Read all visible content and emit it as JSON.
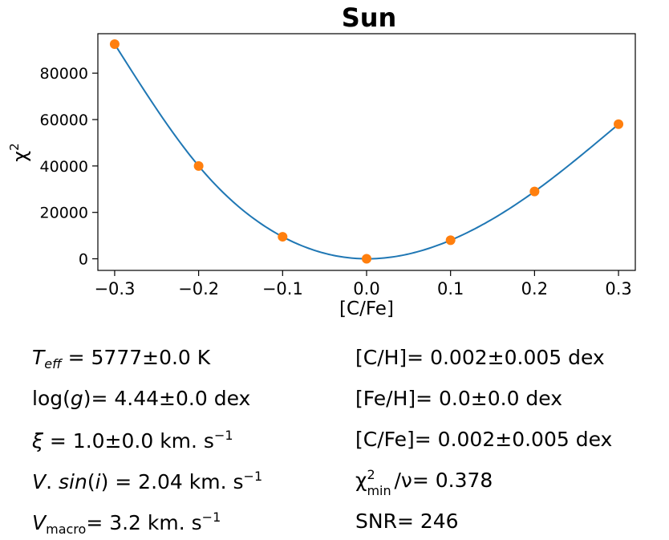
{
  "chart_data": {
    "type": "line",
    "title": "Sun",
    "xlabel": "[C/Fe]",
    "ylabel": "χ",
    "ylabel_sup": "2",
    "xlim": [
      -0.32,
      0.32
    ],
    "ylim": [
      -5000,
      97000
    ],
    "xticks": [
      -0.3,
      -0.2,
      -0.1,
      0.0,
      0.1,
      0.2,
      0.3
    ],
    "xtick_labels": [
      "−0.3",
      "−0.2",
      "−0.1",
      "0.0",
      "0.1",
      "0.2",
      "0.3"
    ],
    "yticks": [
      0,
      20000,
      40000,
      60000,
      80000
    ],
    "ytick_labels": [
      "0",
      "20000",
      "40000",
      "60000",
      "80000"
    ],
    "grid": false,
    "series": [
      {
        "kind": "fit-curve",
        "color": "#1f77b4",
        "x": [
          -0.3,
          -0.2,
          -0.1,
          0.0,
          0.1,
          0.2,
          0.3
        ],
        "y": [
          92500,
          40000,
          9500,
          0,
          8000,
          29000,
          58000
        ]
      },
      {
        "kind": "points",
        "color": "#ff7f0e",
        "x": [
          -0.3,
          -0.2,
          -0.1,
          0.0,
          0.1,
          0.2,
          0.3
        ],
        "y": [
          92500,
          40000,
          9500,
          0,
          8000,
          29000,
          58000
        ]
      }
    ]
  },
  "params": {
    "teff": {
      "sym": "T",
      "sub": "eff",
      "text": " = 5777±0.0 K"
    },
    "logg": {
      "pre": "log(",
      "sym": "g",
      "text": ")= 4.44±0.0 dex"
    },
    "xi": {
      "sym": "ξ",
      "text": " = 1.0±0.0 km. s",
      "sup": "−1"
    },
    "vsini": {
      "pre_sym": "V",
      "mid": ". ",
      "sym": "sin",
      "mid2": "(",
      "sym2": "i",
      "text": ") = 2.04 km. s",
      "sup": "−1"
    },
    "vmacro": {
      "sym": "V",
      "sub": "macro",
      "text": "= 3.2 km. s",
      "sup": "−1"
    },
    "ch": {
      "text": "[C/H]= 0.002±0.005 dex"
    },
    "feh": {
      "text": "[Fe/H]= 0.0±0.0 dex"
    },
    "cfe": {
      "text": "[C/Fe]= 0.002±0.005 dex"
    },
    "chimin": {
      "chi": "χ",
      "sup": "2",
      "sub": "min",
      "text": "/ν= 0.378"
    },
    "snr": {
      "text": "SNR= 246"
    }
  }
}
